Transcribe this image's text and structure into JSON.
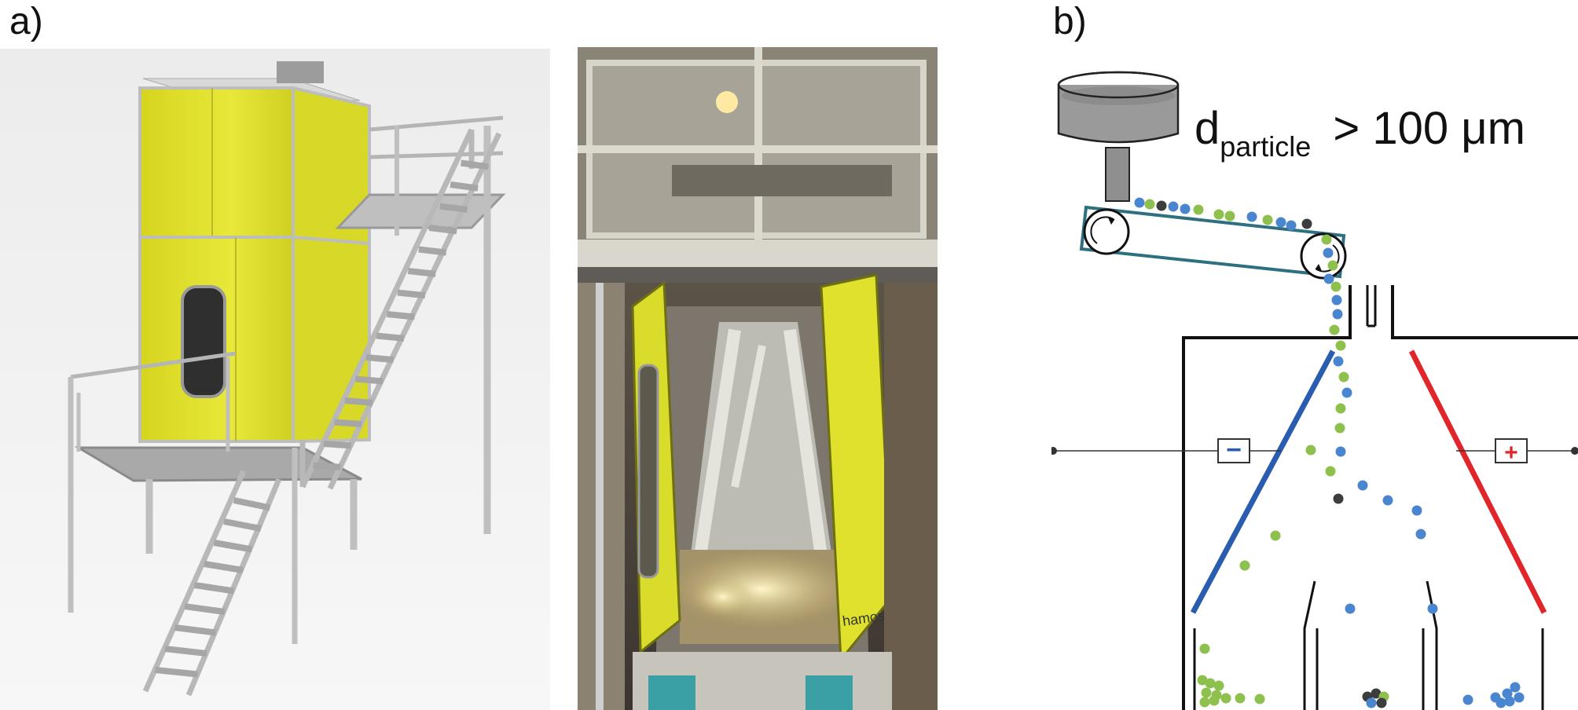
{
  "panels": {
    "a_label": "a)",
    "b_label": "b)"
  },
  "formula": {
    "base": "d",
    "subscript": "particle",
    "relation": ">",
    "value": "100 μm"
  },
  "electrodes": {
    "negative_sign": "−",
    "positive_sign": "+",
    "negative_color": "#2a5db0",
    "positive_color": "#e0262b"
  },
  "photo": {
    "door_brand": "hamos"
  },
  "colors": {
    "machine_yellow": "#e1e02a",
    "frame_grey": "#c8c8c8",
    "belt_teal": "#2e6f80",
    "particle_blue": "#4a86d0",
    "particle_green": "#8dc04d",
    "particle_dark": "#3d3d3d"
  }
}
